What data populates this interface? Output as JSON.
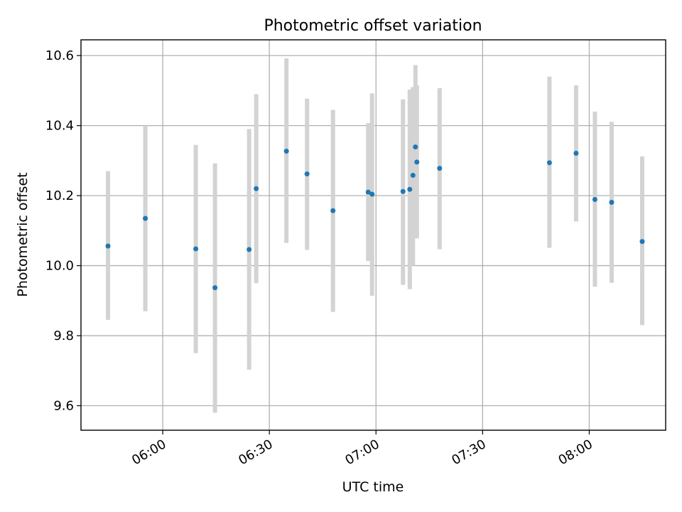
{
  "chart_data": {
    "type": "scatter",
    "title": "Photometric offset variation",
    "xlabel": "UTC time",
    "ylabel": "Photometric offset",
    "xlim": [
      337,
      501.5
    ],
    "ylim": [
      9.53,
      10.645
    ],
    "grid": true,
    "x_unit": "minutes since 00:00 UTC",
    "x_ticks": [
      {
        "value": 360,
        "label": "06:00"
      },
      {
        "value": 390,
        "label": "06:30"
      },
      {
        "value": 420,
        "label": "07:00"
      },
      {
        "value": 450,
        "label": "07:30"
      },
      {
        "value": 480,
        "label": "08:00"
      }
    ],
    "y_ticks": [
      {
        "value": 9.6,
        "label": "9.6"
      },
      {
        "value": 9.8,
        "label": "9.8"
      },
      {
        "value": 10.0,
        "label": "10.0"
      },
      {
        "value": 10.2,
        "label": "10.2"
      },
      {
        "value": 10.4,
        "label": "10.4"
      },
      {
        "value": 10.6,
        "label": "10.6"
      }
    ],
    "series": [
      {
        "name": "Photometric offset",
        "color": "#1f77b4",
        "error_color": "#d3d3d3",
        "points": [
          {
            "x": 344.6,
            "y": 10.056,
            "low": 9.845,
            "high": 10.27
          },
          {
            "x": 355.1,
            "y": 10.135,
            "low": 9.87,
            "high": 10.4
          },
          {
            "x": 369.3,
            "y": 10.048,
            "low": 9.75,
            "high": 10.345
          },
          {
            "x": 374.7,
            "y": 9.937,
            "low": 9.58,
            "high": 10.292
          },
          {
            "x": 384.3,
            "y": 10.046,
            "low": 9.703,
            "high": 10.39
          },
          {
            "x": 386.3,
            "y": 10.22,
            "low": 9.95,
            "high": 10.49
          },
          {
            "x": 394.8,
            "y": 10.327,
            "low": 10.065,
            "high": 10.592
          },
          {
            "x": 400.6,
            "y": 10.262,
            "low": 10.045,
            "high": 10.477
          },
          {
            "x": 407.9,
            "y": 10.157,
            "low": 9.868,
            "high": 10.445
          },
          {
            "x": 417.8,
            "y": 10.21,
            "low": 10.013,
            "high": 10.407
          },
          {
            "x": 418.9,
            "y": 10.204,
            "low": 9.914,
            "high": 10.492
          },
          {
            "x": 427.6,
            "y": 10.212,
            "low": 9.945,
            "high": 10.475
          },
          {
            "x": 429.5,
            "y": 10.218,
            "low": 9.933,
            "high": 10.503
          },
          {
            "x": 430.4,
            "y": 10.258,
            "low": 10.0,
            "high": 10.51
          },
          {
            "x": 431.1,
            "y": 10.339,
            "low": 10.1,
            "high": 10.573
          },
          {
            "x": 431.5,
            "y": 10.296,
            "low": 10.078,
            "high": 10.515
          },
          {
            "x": 437.9,
            "y": 10.278,
            "low": 10.047,
            "high": 10.507
          },
          {
            "x": 468.8,
            "y": 10.294,
            "low": 10.051,
            "high": 10.54
          },
          {
            "x": 476.3,
            "y": 10.321,
            "low": 10.126,
            "high": 10.515
          },
          {
            "x": 481.6,
            "y": 10.189,
            "low": 9.94,
            "high": 10.44
          },
          {
            "x": 486.3,
            "y": 10.181,
            "low": 9.951,
            "high": 10.411
          },
          {
            "x": 494.9,
            "y": 10.069,
            "low": 9.83,
            "high": 10.312
          }
        ]
      }
    ]
  }
}
